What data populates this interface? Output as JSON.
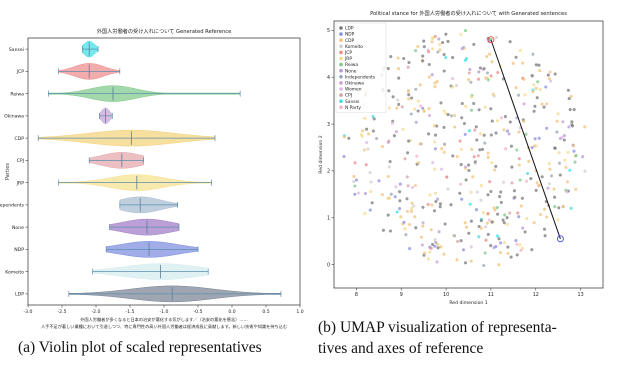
{
  "captions": {
    "a": "(a) Violin plot of scaled representatives",
    "b_line1": "(b) UMAP visualization of representa-",
    "b_line2": "tives and axes of reference"
  },
  "chart_data": [
    {
      "type": "violin",
      "title": "外国人労働者の受け入れについて Generated Reference",
      "xlabel": "外国人労働者が多くなると日本の治安が悪化する気がします／（治安の悪化を懸念）……",
      "x_description_line2": "人手不足が著しい業種において引退しつつ、特に専門性の高い外国人労働者は経済成長に貢献します。新しい技術や知識を持ち込む",
      "ylabel": "Parties",
      "xlim": [
        -3.0,
        1.0
      ],
      "xticks": [
        "-3.0",
        "-2.5",
        "-2.0",
        "-1.5",
        "-1.0",
        "-0.5",
        "0.0",
        "0.5",
        "1.0"
      ],
      "xtick_values": [
        -3.0,
        -2.5,
        -2.0,
        -1.5,
        -1.0,
        -0.5,
        0.0,
        0.5,
        1.0
      ],
      "series": [
        {
          "name": "Sanseitō",
          "label": "Sansei",
          "min": -2.2,
          "q1": -2.15,
          "median": -2.1,
          "q3": -2.02,
          "max": -1.97,
          "color": "#3ee0e6"
        },
        {
          "name": "JCP",
          "label": "JCP",
          "min": -2.55,
          "q1": -2.25,
          "median": -2.1,
          "q3": -1.9,
          "max": -1.65,
          "color": "#f08a8a"
        },
        {
          "name": "Reiwa",
          "label": "Reiwa",
          "min": -2.7,
          "q1": -2.0,
          "median": -1.75,
          "q3": -1.45,
          "max": 0.12,
          "color": "#7fc98a"
        },
        {
          "name": "Okinawa",
          "label": "Okinawa",
          "min": -1.95,
          "q1": -1.9,
          "median": -1.86,
          "q3": -1.8,
          "max": -1.76,
          "color": "#c9a1d6"
        },
        {
          "name": "CDP",
          "label": "CDP",
          "min": -2.85,
          "q1": -2.0,
          "median": -1.48,
          "q3": -0.95,
          "max": -0.25,
          "color": "#f2d27a"
        },
        {
          "name": "CPJ",
          "label": "CPJ",
          "min": -2.1,
          "q1": -1.9,
          "median": -1.62,
          "q3": -1.4,
          "max": -1.3,
          "color": "#e5a6ab"
        },
        {
          "name": "JRP",
          "label": "JRP",
          "min": -2.55,
          "q1": -1.7,
          "median": -1.4,
          "q3": -1.05,
          "max": -0.3,
          "color": "#f5e08c"
        },
        {
          "name": "Independents",
          "label": "Independents",
          "min": -1.65,
          "q1": -1.55,
          "median": -1.35,
          "q3": -1.05,
          "max": -0.8,
          "color": "#a7bdd1"
        },
        {
          "name": "None",
          "label": "None",
          "min": -1.8,
          "q1": -1.55,
          "median": -1.25,
          "q3": -0.95,
          "max": -0.78,
          "color": "#a07cc6"
        },
        {
          "name": "NDP",
          "label": "NDP",
          "min": -1.85,
          "q1": -1.55,
          "median": -1.22,
          "q3": -0.85,
          "max": -0.5,
          "color": "#7c8de0"
        },
        {
          "name": "Komeito",
          "label": "Komeito",
          "min": -2.05,
          "q1": -1.5,
          "median": -1.05,
          "q3": -0.6,
          "max": -0.35,
          "color": "#d4ecef"
        },
        {
          "name": "LDP",
          "label": "LDP",
          "min": -2.4,
          "q1": -1.4,
          "median": -0.88,
          "q3": -0.4,
          "max": 0.72,
          "color": "#7a8494"
        }
      ]
    },
    {
      "type": "scatter",
      "title": "Political stance for 外国人労働者の受け入れについて with Generated sentences",
      "xlabel": "Red dimension 1",
      "ylabel": "Red dimension 2",
      "xlim": [
        7.5,
        13.5
      ],
      "ylim": [
        -0.5,
        5.2
      ],
      "xticks": [
        "8",
        "9",
        "10",
        "11",
        "12",
        "13"
      ],
      "xtick_values": [
        8,
        9,
        10,
        11,
        12,
        13
      ],
      "yticks": [
        "0",
        "1",
        "2",
        "3",
        "4",
        "5"
      ],
      "ytick_values": [
        0,
        1,
        2,
        3,
        4,
        5
      ],
      "legend": {
        "placement": "top-left",
        "entries": [
          {
            "label": "LDP",
            "color": "#7a7a7a"
          },
          {
            "label": "NDP",
            "color": "#8b8fe0"
          },
          {
            "label": "CDP",
            "color": "#f2c37a"
          },
          {
            "label": "Komeito",
            "color": "#cfcfcf"
          },
          {
            "label": "JCP",
            "color": "#f08a8a"
          },
          {
            "label": "JRP",
            "color": "#f5d98c"
          },
          {
            "label": "Reiwa",
            "color": "#7fc98a"
          },
          {
            "label": "None",
            "color": "#b49ad6"
          },
          {
            "label": "Independents",
            "color": "#9aa6b5"
          },
          {
            "label": "Okinawa",
            "color": "#c9a1d6"
          },
          {
            "label": "Women",
            "color": "#e0b7e6"
          },
          {
            "label": "CPJ",
            "color": "#d7a0a5"
          },
          {
            "label": "Sansei",
            "color": "#3ee0e6"
          },
          {
            "label": "N Party",
            "color": "#f3b3cf"
          }
        ]
      },
      "axis_line": {
        "from": [
          11.0,
          4.8
        ],
        "to": [
          12.55,
          0.55
        ]
      }
    }
  ]
}
